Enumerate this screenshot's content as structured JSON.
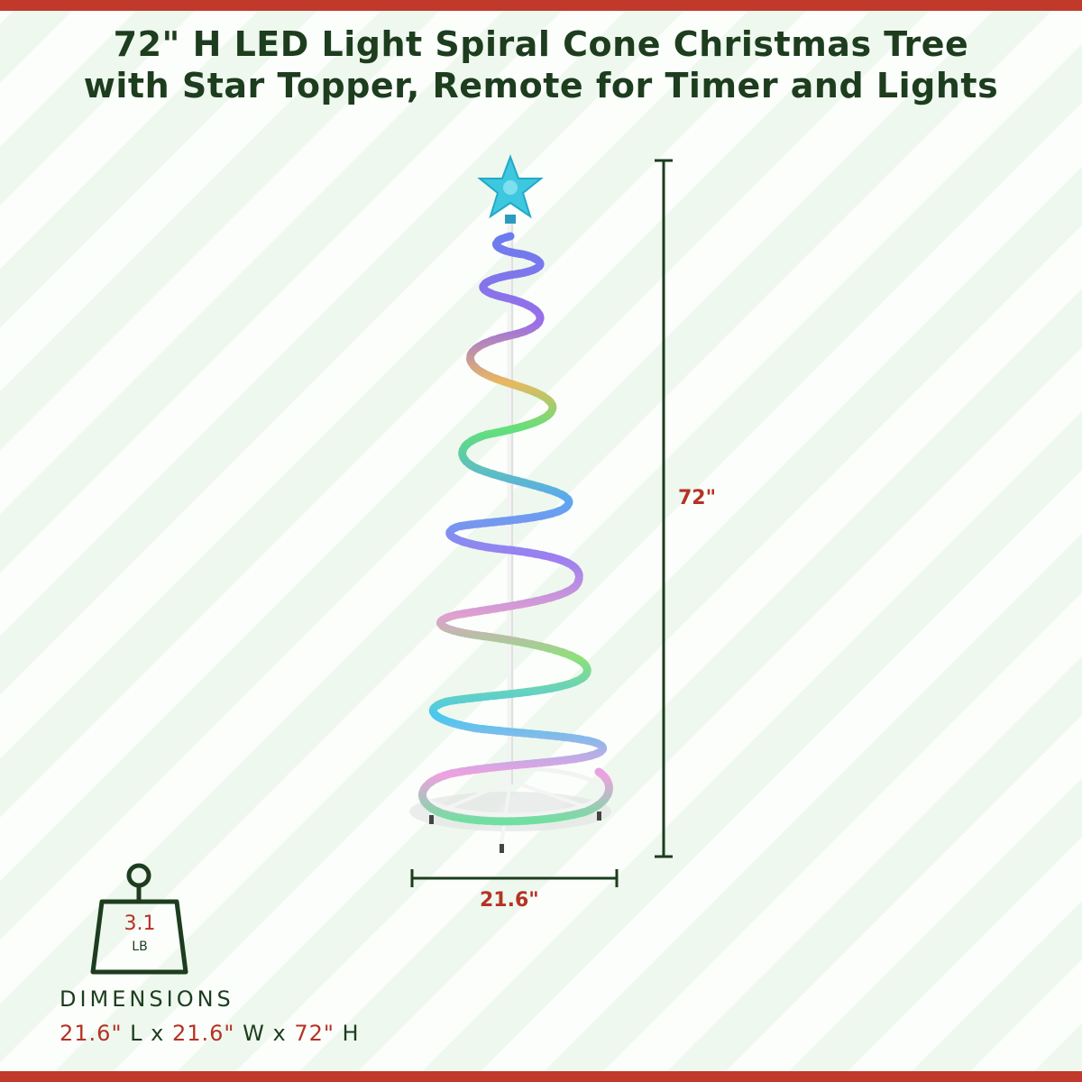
{
  "title": {
    "line1": "72\" H LED Light Spiral Cone Christmas Tree",
    "line2": "with Star Topper, Remote for Timer and Lights"
  },
  "dimensions": {
    "height_label": "72\"",
    "width_label": "21.6\"",
    "heading": "DIMENSIONS",
    "length_value": "21.6\"",
    "length_unit": "L",
    "width_value": "21.6\"",
    "width_unit": "W",
    "height_value": "72\"",
    "height_unit": "H",
    "separator": "x"
  },
  "weight": {
    "value": "3.1",
    "unit": "LB"
  },
  "colors": {
    "accent_red": "#c0392b",
    "dark_green": "#1d3d1e",
    "star": "#3ec8e0"
  },
  "icons": [
    "weight-icon",
    "star-icon"
  ]
}
